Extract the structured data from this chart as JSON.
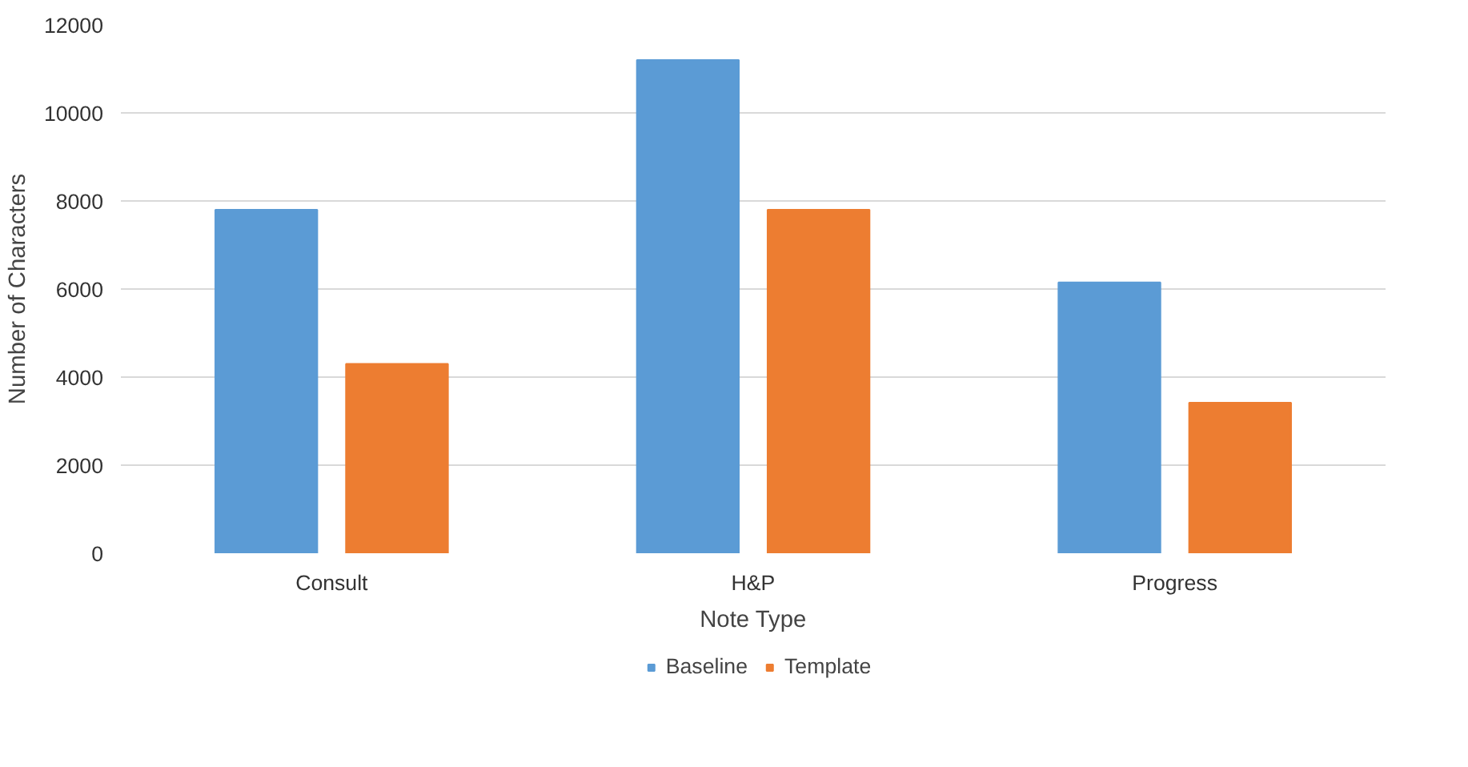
{
  "chart_data": {
    "type": "bar",
    "xlabel": "Note Type",
    "ylabel": "Number of Characters",
    "categories": [
      "Consult",
      "H&P",
      "Progress"
    ],
    "series": [
      {
        "name": "Baseline",
        "color": "#5b9bd5",
        "values": [
          7800,
          11200,
          6150
        ]
      },
      {
        "name": "Template",
        "color": "#ed7d31",
        "values": [
          4300,
          7800,
          3420
        ]
      }
    ],
    "ylim": [
      0,
      12000
    ],
    "yticks": [
      0,
      2000,
      4000,
      6000,
      8000,
      10000,
      12000
    ],
    "grid": "y",
    "legend": "bottom"
  }
}
